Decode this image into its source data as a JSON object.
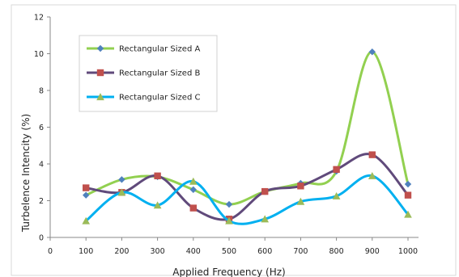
{
  "chart_data": {
    "type": "line",
    "title": "",
    "xlabel": "Applied Frequency (Hz)",
    "ylabel": "Turbelence Intencity (%)",
    "xlim": [
      0,
      1000
    ],
    "ylim": [
      0,
      12
    ],
    "x_ticks": [
      0,
      100,
      200,
      300,
      400,
      500,
      600,
      700,
      800,
      900,
      1000
    ],
    "y_ticks": [
      0,
      2,
      4,
      6,
      8,
      10,
      12
    ],
    "grid": false,
    "smooth": true,
    "legend_position": "top-left",
    "x": [
      100,
      200,
      300,
      400,
      500,
      600,
      700,
      800,
      900,
      1000
    ],
    "series": [
      {
        "name": "Rectangular Sized A",
        "color": "#92d050",
        "marker_color": "#4f81bd",
        "marker": "diamond",
        "values": [
          2.3,
          3.15,
          3.3,
          2.6,
          1.8,
          2.5,
          2.95,
          3.6,
          10.1,
          2.9
        ]
      },
      {
        "name": "Rectangular Sized B",
        "color": "#604a7b",
        "marker_color": "#c0504d",
        "marker": "square",
        "values": [
          2.7,
          2.45,
          3.35,
          1.6,
          1.0,
          2.5,
          2.8,
          3.7,
          4.5,
          2.3
        ]
      },
      {
        "name": "Rectangular Sized C",
        "color": "#00b0f0",
        "marker_color": "#9bbb59",
        "marker": "triangle",
        "values": [
          0.9,
          2.45,
          1.75,
          3.05,
          0.9,
          1.0,
          1.95,
          2.25,
          3.35,
          1.25
        ]
      }
    ]
  }
}
